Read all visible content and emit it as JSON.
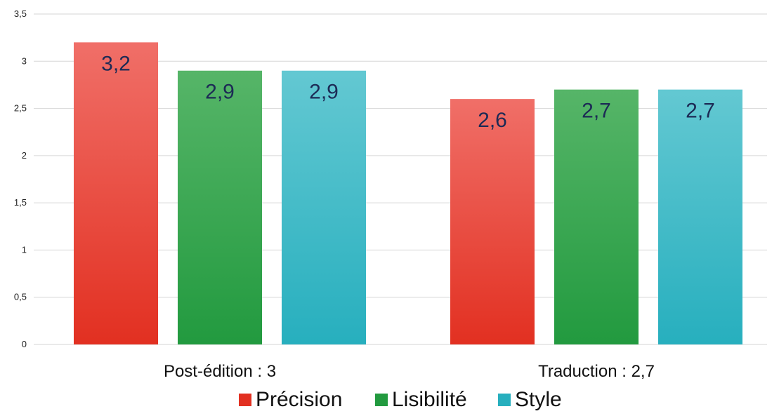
{
  "chart_data": {
    "type": "bar",
    "title": "",
    "xlabel": "",
    "ylabel": "",
    "categories": [
      "Post-édition : 3",
      "Traduction : 2,7"
    ],
    "series": [
      {
        "name": "Précision",
        "values": [
          3.2,
          2.6
        ],
        "labels": [
          "3,2",
          "2,6"
        ],
        "color_top": "#f06f68",
        "color_bottom": "#e23021"
      },
      {
        "name": "Lisibilité",
        "values": [
          2.9,
          2.7
        ],
        "labels": [
          "2,9",
          "2,7"
        ],
        "color_top": "#56b568",
        "color_bottom": "#229a3f"
      },
      {
        "name": "Style",
        "values": [
          2.9,
          2.7
        ],
        "labels": [
          "2,9",
          "2,7"
        ],
        "color_top": "#63c8d2",
        "color_bottom": "#27afbe"
      }
    ],
    "ylim": [
      0,
      3.5
    ],
    "yticks": [
      0,
      0.5,
      1,
      1.5,
      2,
      2.5,
      3,
      3.5
    ],
    "ytick_labels": [
      "0",
      "0,5",
      "1",
      "1,5",
      "2",
      "2,5",
      "3",
      "3,5"
    ],
    "grid": true,
    "legend": "bottom"
  }
}
